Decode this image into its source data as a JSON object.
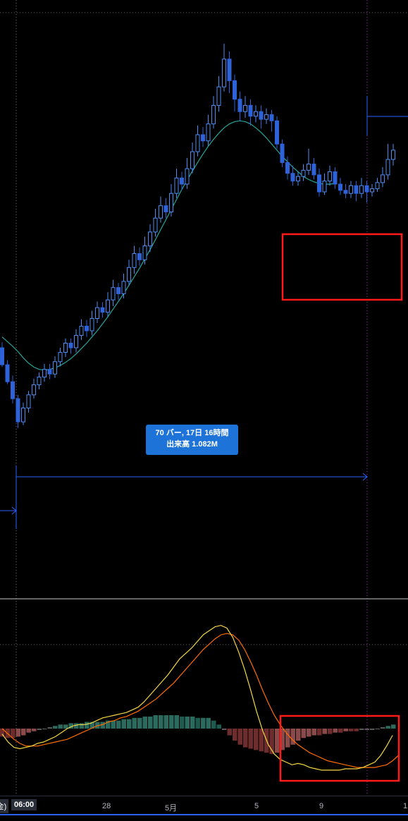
{
  "measure_tooltip": {
    "line1": "70 バー, 17日 16時間",
    "line2": "出来高 1.082M"
  },
  "time_axis": {
    "cursor_label": "06:00",
    "cut_label": "(金)",
    "ticks": [
      "28",
      "5月",
      "5",
      "9",
      "1"
    ]
  },
  "colors": {
    "background": "#000000",
    "candle_up": "#4d8ef5",
    "candle_down": "#2e62d9",
    "moving_average": "#26a69a",
    "macd_line": "#f5d742",
    "signal_line": "#ff6d00",
    "hist_positive": "#1f5a4f",
    "hist_negative": "#6e2c2c",
    "hist_neutral": "#5d5d5d",
    "highlight_box": "#ff1a1a",
    "measure": "#2962ff",
    "crosshair": "#9c27b0"
  },
  "chart_data": [
    {
      "type": "candlestick",
      "series": [
        {
          "name": "",
          "values": [
            [
              1046,
              1024,
              1053,
              1021
            ],
            [
              1024,
              1002,
              1030,
              999
            ],
            [
              1002,
              980,
              1010,
              974
            ],
            [
              980,
              950,
              985,
              942
            ],
            [
              950,
              968,
              975,
              946
            ],
            [
              968,
              985,
              990,
              962
            ],
            [
              985,
              998,
              1006,
              980
            ],
            [
              998,
              1008,
              1014,
              992
            ],
            [
              1008,
              1018,
              1025,
              1002
            ],
            [
              1018,
              1012,
              1025,
              1005
            ],
            [
              1012,
              1028,
              1035,
              1007
            ],
            [
              1028,
              1040,
              1046,
              1022
            ],
            [
              1040,
              1052,
              1058,
              1034
            ],
            [
              1052,
              1046,
              1058,
              1038
            ],
            [
              1046,
              1062,
              1070,
              1040
            ],
            [
              1062,
              1074,
              1083,
              1056
            ],
            [
              1074,
              1068,
              1082,
              1060
            ],
            [
              1068,
              1084,
              1094,
              1062
            ],
            [
              1084,
              1098,
              1106,
              1078
            ],
            [
              1098,
              1092,
              1105,
              1085
            ],
            [
              1092,
              1108,
              1118,
              1086
            ],
            [
              1108,
              1124,
              1134,
              1100
            ],
            [
              1124,
              1116,
              1130,
              1108
            ],
            [
              1116,
              1132,
              1142,
              1110
            ],
            [
              1132,
              1150,
              1160,
              1126
            ],
            [
              1150,
              1168,
              1178,
              1142
            ],
            [
              1168,
              1160,
              1176,
              1152
            ],
            [
              1160,
              1178,
              1190,
              1154
            ],
            [
              1178,
              1196,
              1206,
              1170
            ],
            [
              1196,
              1214,
              1226,
              1190
            ],
            [
              1214,
              1230,
              1242,
              1208
            ],
            [
              1230,
              1222,
              1240,
              1214
            ],
            [
              1222,
              1246,
              1258,
              1216
            ],
            [
              1246,
              1266,
              1278,
              1240
            ],
            [
              1266,
              1258,
              1274,
              1250
            ],
            [
              1258,
              1278,
              1292,
              1252
            ],
            [
              1278,
              1300,
              1312,
              1272
            ],
            [
              1300,
              1322,
              1334,
              1294
            ],
            [
              1322,
              1314,
              1332,
              1306
            ],
            [
              1314,
              1336,
              1348,
              1308
            ],
            [
              1336,
              1360,
              1372,
              1330
            ],
            [
              1360,
              1384,
              1398,
              1352
            ],
            [
              1384,
              1420,
              1440,
              1378
            ],
            [
              1420,
              1392,
              1430,
              1376
            ],
            [
              1392,
              1368,
              1400,
              1352
            ],
            [
              1368,
              1352,
              1378,
              1340
            ],
            [
              1352,
              1360,
              1372,
              1344
            ],
            [
              1360,
              1346,
              1368,
              1334
            ],
            [
              1346,
              1352,
              1360,
              1338
            ],
            [
              1352,
              1342,
              1360,
              1330
            ],
            [
              1342,
              1348,
              1356,
              1336
            ],
            [
              1348,
              1340,
              1354,
              1326
            ],
            [
              1340,
              1310,
              1346,
              1304
            ],
            [
              1310,
              1286,
              1316,
              1280
            ],
            [
              1286,
              1272,
              1294,
              1264
            ],
            [
              1272,
              1262,
              1282,
              1256
            ],
            [
              1262,
              1268,
              1274,
              1256
            ],
            [
              1268,
              1276,
              1284,
              1262
            ],
            [
              1276,
              1284,
              1304,
              1270
            ],
            [
              1284,
              1270,
              1292,
              1264
            ],
            [
              1270,
              1248,
              1278,
              1242
            ],
            [
              1248,
              1262,
              1272,
              1244
            ],
            [
              1262,
              1274,
              1282,
              1256
            ],
            [
              1274,
              1258,
              1280,
              1252
            ],
            [
              1258,
              1250,
              1266,
              1244
            ],
            [
              1250,
              1246,
              1258,
              1240
            ],
            [
              1246,
              1256,
              1262,
              1240
            ],
            [
              1256,
              1246,
              1262,
              1236
            ],
            [
              1246,
              1256,
              1266,
              1240
            ],
            [
              1256,
              1248,
              1262,
              1234
            ],
            [
              1248,
              1252,
              1258,
              1242
            ],
            [
              1252,
              1260,
              1266,
              1248
            ],
            [
              1260,
              1270,
              1280,
              1254
            ],
            [
              1270,
              1290,
              1310,
              1264
            ],
            [
              1290,
              1302,
              1310,
              1282
            ]
          ]
        }
      ],
      "ma_values": [
        1060,
        1054,
        1048,
        1041,
        1033,
        1026,
        1021,
        1018,
        1017,
        1018,
        1020,
        1023,
        1027,
        1032,
        1038,
        1045,
        1052,
        1060,
        1068,
        1077,
        1086,
        1096,
        1106,
        1116,
        1127,
        1138,
        1149,
        1161,
        1173,
        1186,
        1199,
        1212,
        1225,
        1238,
        1251,
        1263,
        1275,
        1286,
        1297,
        1307,
        1316,
        1324,
        1331,
        1336,
        1339,
        1340,
        1339,
        1336,
        1331,
        1325,
        1318,
        1310,
        1302,
        1294,
        1287,
        1280,
        1274,
        1268,
        1264,
        1261,
        1259,
        1258,
        1258,
        1259
      ],
      "highlight_box": {
        "from_index": 54,
        "to_index": 74
      }
    },
    {
      "type": "macd",
      "series": [
        {
          "name": "",
          "kind": "histogram",
          "values": [
            -6,
            -7,
            -7,
            -6,
            -5,
            -3,
            -2,
            -1,
            0,
            1,
            2,
            3,
            3,
            4,
            4,
            4,
            5,
            5,
            5,
            5,
            6,
            6,
            6,
            7,
            7,
            8,
            8,
            9,
            9,
            10,
            10,
            10,
            10,
            10,
            9,
            9,
            9,
            8,
            8,
            8,
            6,
            3,
            -1,
            -5,
            -9,
            -12,
            -14,
            -15,
            -16,
            -17,
            -18,
            -19,
            -18,
            -16,
            -14,
            -12,
            -9,
            -7,
            -6,
            -5,
            -5,
            -4,
            -4,
            -3,
            -3,
            -2,
            -2,
            -2,
            -1,
            -1,
            -1,
            0,
            1,
            2,
            3
          ]
        },
        {
          "name": "",
          "kind": "line",
          "values": [
            -4,
            -10,
            -14,
            -15,
            -14,
            -13,
            -11,
            -10,
            -8,
            -6,
            -3,
            0,
            2,
            3,
            3,
            4,
            6,
            8,
            9,
            10,
            11,
            12,
            14,
            16,
            20,
            25,
            30,
            35,
            40,
            46,
            52,
            56,
            60,
            65,
            70,
            73,
            76,
            77,
            75,
            68,
            57,
            44,
            29,
            13,
            -1,
            -12,
            -19,
            -23,
            -25,
            -27,
            -26,
            -27,
            -29,
            -30,
            -31,
            -31,
            -31,
            -31,
            -30,
            -30,
            -30,
            -29,
            -27,
            -25,
            -20,
            -13,
            -5
          ]
        },
        {
          "name": "",
          "kind": "line",
          "values": [
            0,
            -4,
            -8,
            -11,
            -13,
            -13,
            -13,
            -12,
            -11,
            -10,
            -9,
            -8,
            -6,
            -4,
            -2,
            0,
            2,
            3,
            5,
            6,
            8,
            9,
            11,
            13,
            16,
            19,
            22,
            26,
            30,
            34,
            39,
            44,
            49,
            54,
            59,
            63,
            67,
            70,
            71,
            70,
            66,
            59,
            50,
            40,
            29,
            19,
            10,
            3,
            -3,
            -8,
            -12,
            -15,
            -18,
            -20,
            -22,
            -24,
            -25,
            -26,
            -27,
            -28,
            -29,
            -29,
            -29,
            -29,
            -28,
            -27,
            -24,
            -20
          ]
        }
      ],
      "highlight_box": {
        "from_index": 54,
        "to_index": 74
      }
    }
  ]
}
